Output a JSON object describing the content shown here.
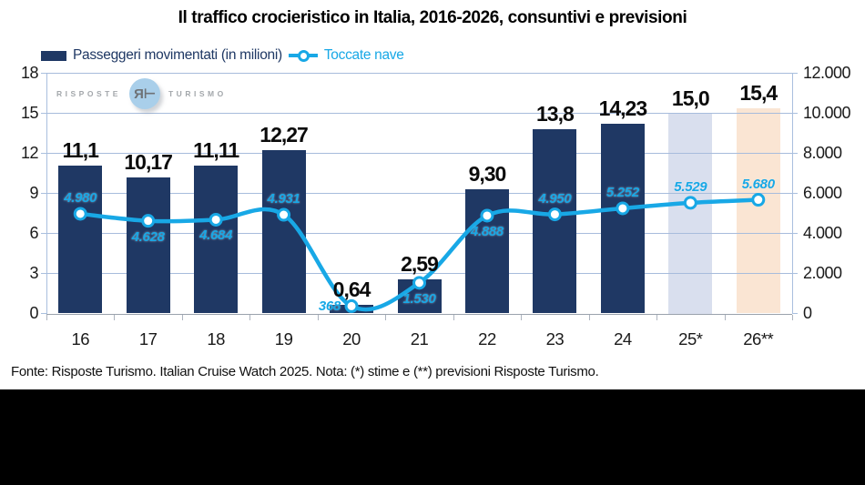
{
  "title": "Il traffico crocieristico in Italia, 2016-2026, consuntivi e previsioni",
  "legend": {
    "bar_label": "Passeggeri movimentati (in milioni)",
    "line_label": "Toccate nave"
  },
  "watermark": {
    "left": "RISPOSTE",
    "right": "TURISMO",
    "monogram": "R"
  },
  "footer": "Fonte: Risposte Turismo. Italian Cruise Watch 2025. Nota: (*) stime e (**) previsioni Risposte Turismo.",
  "colors": {
    "bar_actual": "#1F3864",
    "bar_estimate": "#D9DFEE",
    "bar_forecast": "#FAE5D3",
    "line": "#18A8E6",
    "grid": "#A7BCDC"
  },
  "chart_data": {
    "type": "bar",
    "subtype": "bar+line combo",
    "title": "Il traffico crocieristico in Italia, 2016-2026, consuntivi e previsioni",
    "categories": [
      "16",
      "17",
      "18",
      "19",
      "20",
      "21",
      "22",
      "23",
      "24",
      "25*",
      "26**"
    ],
    "series": [
      {
        "name": "Passeggeri movimentati (in milioni)",
        "type": "bar",
        "axis": "left",
        "values": [
          11.1,
          10.17,
          11.11,
          12.27,
          0.64,
          2.59,
          9.3,
          13.8,
          14.23,
          15.0,
          15.4
        ],
        "labels": [
          "11,1",
          "10,17",
          "11,11",
          "12,27",
          "0,64",
          "2,59",
          "9,30",
          "13,8",
          "14,23",
          "15,0",
          "15,4"
        ],
        "status": [
          "actual",
          "actual",
          "actual",
          "actual",
          "actual",
          "actual",
          "actual",
          "actual",
          "actual",
          "estimate",
          "forecast"
        ]
      },
      {
        "name": "Toccate nave",
        "type": "line",
        "axis": "right",
        "values": [
          4980,
          4628,
          4684,
          4931,
          368,
          1530,
          4888,
          4950,
          5252,
          5529,
          5680
        ],
        "labels": [
          "4.980",
          "4.628",
          "4.684",
          "4.931",
          "368",
          "1.530",
          "4.888",
          "4.950",
          "5.252",
          "5.529",
          "5.680"
        ],
        "label_pos": [
          "above",
          "below",
          "below",
          "above",
          "left",
          "below",
          "below",
          "above",
          "above",
          "above",
          "above"
        ]
      }
    ],
    "left_axis": {
      "min": 0,
      "max": 18,
      "ticks": [
        "0",
        "3",
        "6",
        "9",
        "12",
        "15",
        "18"
      ]
    },
    "right_axis": {
      "min": 0,
      "max": 12000,
      "ticks": [
        "0",
        "2.000",
        "4.000",
        "6.000",
        "8.000",
        "10.000",
        "12.000"
      ]
    },
    "grid": true,
    "legend_position": "top-left",
    "notes": "(*) stime, (**) previsioni"
  }
}
